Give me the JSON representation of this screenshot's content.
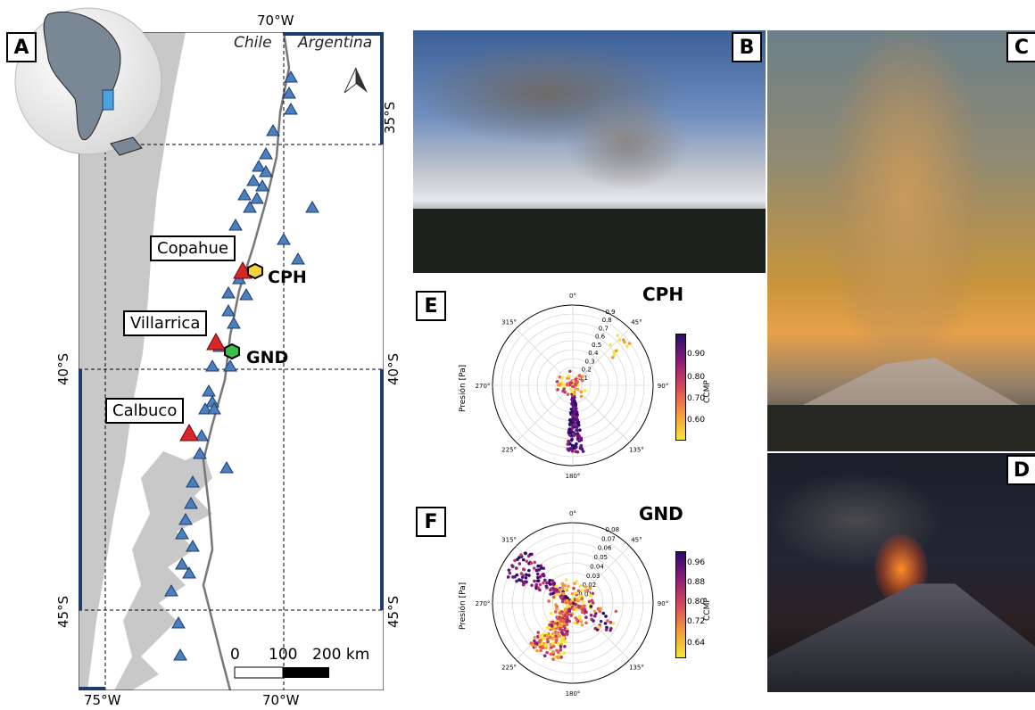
{
  "panels": {
    "a": "A",
    "b": "B",
    "c": "C",
    "d": "D",
    "e": "E",
    "f": "F"
  },
  "map": {
    "countries": {
      "chile": "Chile",
      "argentina": "Argentina"
    },
    "top_lon_label": "70°W",
    "bottom_lon_labels": [
      "75°W",
      "70°W"
    ],
    "lat_labels": [
      "35°S",
      "40°S",
      "45°S"
    ],
    "volcanoes": {
      "copahue": "Copahue",
      "villarrica": "Villarrica",
      "calbuco": "Calbuco"
    },
    "stations": {
      "cph": "CPH",
      "gnd": "GND"
    },
    "scale": {
      "l0": "0",
      "l1": "100",
      "l2": "200 km"
    },
    "colors": {
      "sea": "#ffffff",
      "land": "#c8c8c8",
      "station": "#4a7fc0",
      "volcano": "#d62728",
      "frame": "#1d3b6b"
    }
  },
  "polar_e": {
    "title": "CPH",
    "ylabel": "Presión [Pa]",
    "cbar_label": "CCMP",
    "angles": [
      "0°",
      "45°",
      "90°",
      "135°",
      "180°",
      "225°",
      "270°",
      "315°"
    ],
    "rticks": [
      "0.1",
      "0.2",
      "0.3",
      "0.4",
      "0.5",
      "0.6",
      "0.7",
      "0.8",
      "0.9"
    ],
    "cbar_ticks": [
      "0.90",
      "0.80",
      "0.70",
      "0.60"
    ]
  },
  "polar_f": {
    "title": "GND",
    "ylabel": "Presión [Pa]",
    "cbar_label": "CCMP",
    "angles": [
      "0°",
      "45°",
      "90°",
      "135°",
      "180°",
      "225°",
      "270°",
      "315°"
    ],
    "rticks": [
      "0.01",
      "0.02",
      "0.03",
      "0.04",
      "0.05",
      "0.06",
      "0.07",
      "0.08"
    ],
    "cbar_ticks": [
      "0.96",
      "0.88",
      "0.80",
      "0.72",
      "0.64"
    ]
  }
}
